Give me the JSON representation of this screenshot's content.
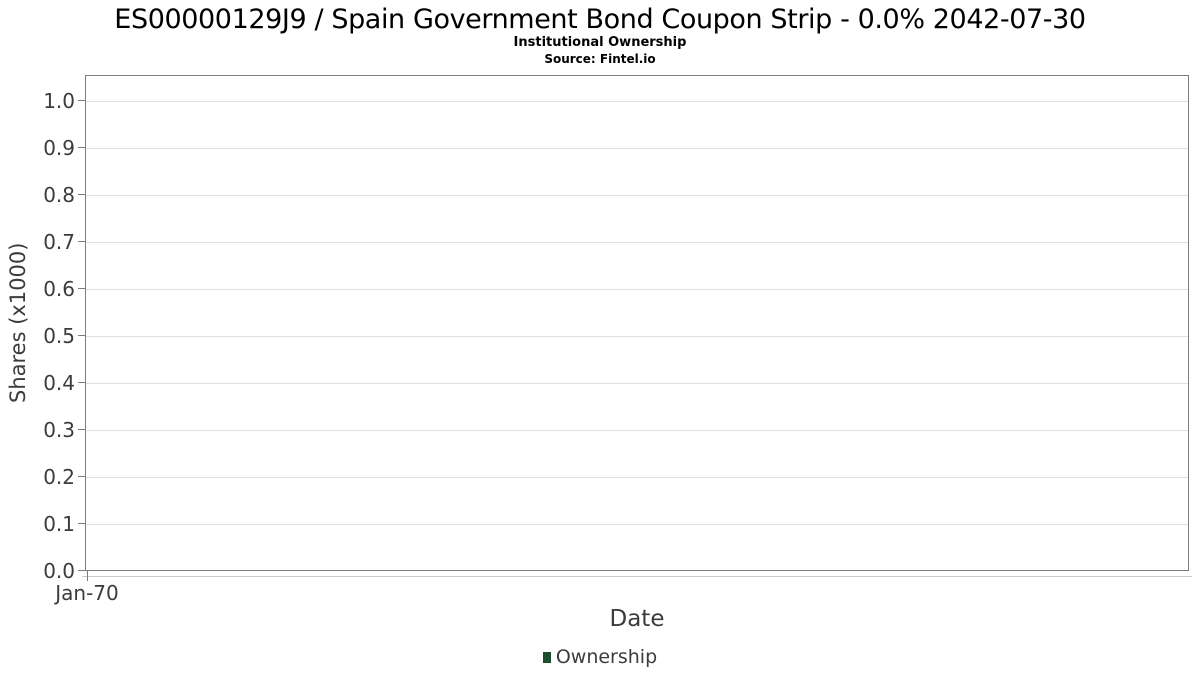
{
  "header": {
    "title": "ES00000129J9 / Spain Government Bond Coupon Strip - 0.0% 2042-07-30",
    "subtitle": "Institutional Ownership",
    "source": "Source: Fintel.io"
  },
  "axes": {
    "xlabel": "Date",
    "ylabel": "Shares (x1000)"
  },
  "legend": {
    "label": "Ownership",
    "marker_color": "#1e4d2b"
  },
  "chart_data": {
    "type": "line",
    "title": "ES00000129J9 / Spain Government Bond Coupon Strip - 0.0% 2042-07-30",
    "subtitle": "Institutional Ownership",
    "source": "Source: Fintel.io",
    "xlabel": "Date",
    "ylabel": "Shares (x1000)",
    "x_tick_labels": [
      "Jan-70"
    ],
    "y_ticks": [
      0.0,
      0.1,
      0.2,
      0.3,
      0.4,
      0.5,
      0.6,
      0.7,
      0.8,
      0.9,
      1.0
    ],
    "y_tick_labels": [
      "0.0",
      "0.1",
      "0.2",
      "0.3",
      "0.4",
      "0.5",
      "0.6",
      "0.7",
      "0.8",
      "0.9",
      "1.0"
    ],
    "ylim": [
      0.0,
      1.05
    ],
    "grid": "horizontal-only",
    "legend_position": "bottom-center",
    "series": [
      {
        "name": "Ownership",
        "color": "#1e4d2b",
        "x": [],
        "values": []
      }
    ],
    "colors": {
      "plot_border": "#7d7d7d",
      "gridline": "#e0e0e0",
      "axis_line": "#c9c9c9",
      "tick_text": "#3c3c3c",
      "title_text": "#000000"
    }
  }
}
